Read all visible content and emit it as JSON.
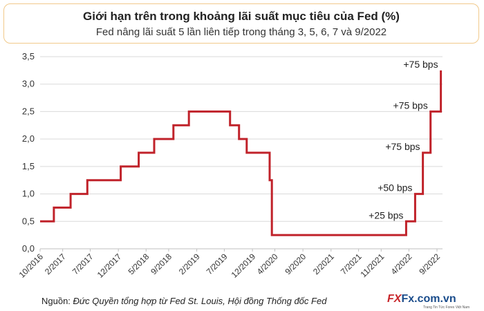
{
  "header": {
    "title": "Giới hạn trên trong khoảng lãi suất mục tiêu của Fed (%)",
    "subtitle": "Fed nâng lãi suất 5 lần liên tiếp trong tháng 3, 5, 6, 7 và 9/2022"
  },
  "footer": {
    "source_label": "Nguồn: ",
    "source_text": "Đức Quyền tổng hợp từ Fed St. Louis, Hội đồng Thống đốc Fed",
    "logo_fx": "FX",
    "logo_domain": "Fx.com.vn",
    "logo_tagline": "Trang Tin Tức Forex Việt Nam"
  },
  "chart_data": {
    "type": "line",
    "series": [
      {
        "color": "#c0222a",
        "points": [
          [
            "2016-10-01",
            0.5
          ],
          [
            "2016-12-15",
            0.5
          ],
          [
            "2016-12-15",
            0.75
          ],
          [
            "2017-03-16",
            0.75
          ],
          [
            "2017-03-16",
            1.0
          ],
          [
            "2017-06-15",
            1.0
          ],
          [
            "2017-06-15",
            1.25
          ],
          [
            "2017-12-14",
            1.25
          ],
          [
            "2017-12-14",
            1.5
          ],
          [
            "2018-03-22",
            1.5
          ],
          [
            "2018-03-22",
            1.75
          ],
          [
            "2018-06-14",
            1.75
          ],
          [
            "2018-06-14",
            2.0
          ],
          [
            "2018-09-27",
            2.0
          ],
          [
            "2018-09-27",
            2.25
          ],
          [
            "2018-12-20",
            2.25
          ],
          [
            "2018-12-20",
            2.5
          ],
          [
            "2019-08-01",
            2.5
          ],
          [
            "2019-08-01",
            2.25
          ],
          [
            "2019-09-19",
            2.25
          ],
          [
            "2019-09-19",
            2.0
          ],
          [
            "2019-10-31",
            2.0
          ],
          [
            "2019-10-31",
            1.75
          ],
          [
            "2020-03-04",
            1.75
          ],
          [
            "2020-03-04",
            1.25
          ],
          [
            "2020-03-16",
            1.25
          ],
          [
            "2020-03-16",
            0.25
          ],
          [
            "2022-03-17",
            0.25
          ],
          [
            "2022-03-17",
            0.5
          ],
          [
            "2022-05-05",
            0.5
          ],
          [
            "2022-05-05",
            1.0
          ],
          [
            "2022-06-16",
            1.0
          ],
          [
            "2022-06-16",
            1.75
          ],
          [
            "2022-07-28",
            1.75
          ],
          [
            "2022-07-28",
            2.5
          ],
          [
            "2022-09-22",
            2.5
          ],
          [
            "2022-09-22",
            3.25
          ]
        ]
      }
    ],
    "x_ticks": [
      "10/2016",
      "2/2017",
      "7/2017",
      "12/2017",
      "5/2018",
      "9/2018",
      "2/2019",
      "7/2019",
      "12/2019",
      "4/2020",
      "9/2020",
      "2/2021",
      "7/2021",
      "11/2021",
      "4/2022",
      "9/2022"
    ],
    "x_tick_dates": [
      "2016-10-01",
      "2017-02-01",
      "2017-07-01",
      "2017-12-01",
      "2018-05-01",
      "2018-09-01",
      "2019-02-01",
      "2019-07-01",
      "2019-12-01",
      "2020-04-01",
      "2020-09-01",
      "2021-02-01",
      "2021-07-01",
      "2021-11-01",
      "2022-04-01",
      "2022-09-01"
    ],
    "y_ticks": [
      "0,0",
      "0,5",
      "1,0",
      "1,5",
      "2,0",
      "2,5",
      "3,0",
      "3,5"
    ],
    "ylim": [
      0,
      3.5
    ],
    "xlim": [
      "2016-10-01",
      "2022-10-01"
    ],
    "grid": "horizontal",
    "annotations": [
      {
        "text": "+25 bps",
        "date": "2022-03-17",
        "y": 0.5
      },
      {
        "text": "+50 bps",
        "date": "2022-05-05",
        "y": 1.0
      },
      {
        "text": "+75 bps",
        "date": "2022-06-16",
        "y": 1.75
      },
      {
        "text": "+75 bps",
        "date": "2022-07-28",
        "y": 2.5
      },
      {
        "text": "+75 bps",
        "date": "2022-09-22",
        "y": 3.25
      }
    ]
  }
}
